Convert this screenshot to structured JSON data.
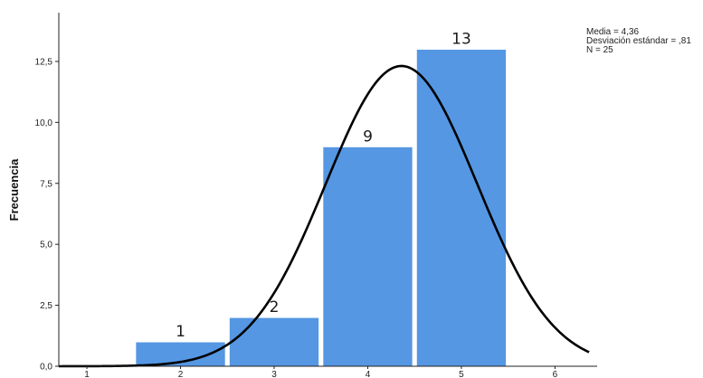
{
  "chart_data": {
    "type": "bar",
    "categories": [
      "1",
      "2",
      "3",
      "4",
      "5",
      "6"
    ],
    "bins": [
      {
        "x": 2,
        "value": 1
      },
      {
        "x": 3,
        "value": 2
      },
      {
        "x": 4,
        "value": 9
      },
      {
        "x": 5,
        "value": 13
      }
    ],
    "data_labels": [
      "1",
      "2",
      "9",
      "13"
    ],
    "x_ticks": [
      "1",
      "2",
      "3",
      "4",
      "5",
      "6"
    ],
    "y_ticks": [
      {
        "value": 0,
        "label": "0,0"
      },
      {
        "value": 2.5,
        "label": "2,5"
      },
      {
        "value": 5,
        "label": "5,0"
      },
      {
        "value": 7.5,
        "label": "7,5"
      },
      {
        "value": 10,
        "label": "10,0"
      },
      {
        "value": 12.5,
        "label": "12,5"
      }
    ],
    "xlim": [
      0.7,
      6.45
    ],
    "ylim": [
      0,
      14.5
    ],
    "ylabel": "Frecuencia",
    "xlabel": "",
    "normal_curve": {
      "mean": 4.36,
      "std": 0.81,
      "n": 25,
      "bin_width": 1
    },
    "stats_lines": [
      "Media = 4,36",
      "Desviación estándar = ,81",
      "N = 25"
    ],
    "bar_color": "#5597e3",
    "curve_color": "#000000",
    "grid": false
  }
}
